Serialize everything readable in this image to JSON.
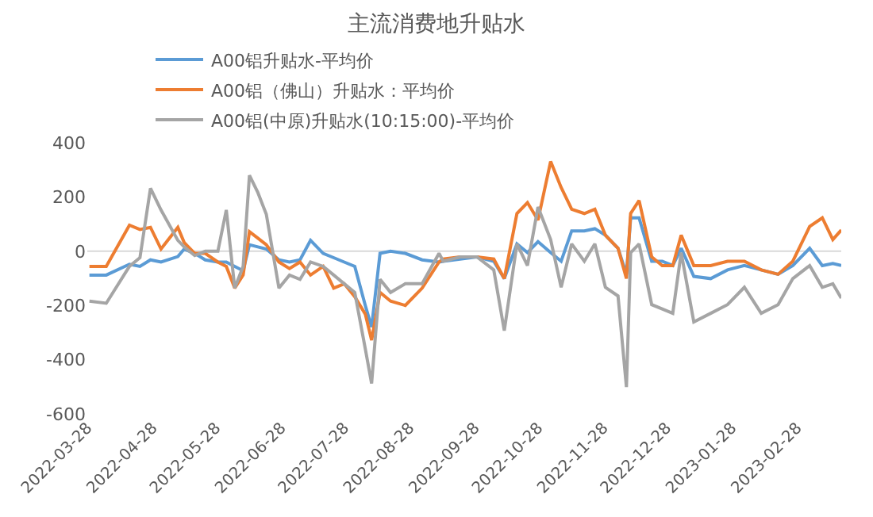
{
  "chart_data": {
    "type": "line",
    "title": "主流消费地升贴水",
    "x": [
      "2022-03-29",
      "2022-04-06",
      "2022-04-17",
      "2022-04-22",
      "2022-04-27",
      "2022-05-02",
      "2022-05-10",
      "2022-05-13",
      "2022-05-18",
      "2022-05-23",
      "2022-05-29",
      "2022-06-02",
      "2022-06-06",
      "2022-06-10",
      "2022-06-13",
      "2022-06-17",
      "2022-06-21",
      "2022-06-27",
      "2022-07-02",
      "2022-07-07",
      "2022-07-12",
      "2022-07-18",
      "2022-07-23",
      "2022-07-28",
      "2022-08-02",
      "2022-08-07",
      "2022-08-10",
      "2022-08-14",
      "2022-08-19",
      "2022-08-26",
      "2022-09-03",
      "2022-09-11",
      "2022-09-13",
      "2022-09-21",
      "2022-09-29",
      "2022-10-07",
      "2022-10-12",
      "2022-10-18",
      "2022-10-23",
      "2022-10-28",
      "2022-11-03",
      "2022-11-08",
      "2022-11-13",
      "2022-11-19",
      "2022-11-24",
      "2022-11-29",
      "2022-12-05",
      "2022-12-09",
      "2022-12-11",
      "2022-12-15",
      "2022-12-21",
      "2022-12-26",
      "2022-12-31",
      "2023-01-04",
      "2023-01-10",
      "2023-01-18",
      "2023-01-26",
      "2023-02-03",
      "2023-02-11",
      "2023-02-19",
      "2023-02-26",
      "2023-03-06",
      "2023-03-12",
      "2023-03-17",
      "2023-03-21"
    ],
    "series": [
      {
        "name": "A00铝升贴水-平均价",
        "color": "#5b9bd5",
        "values": [
          -88,
          -88,
          -48,
          -56,
          -32,
          -40,
          -20,
          8,
          -8,
          -32,
          -40,
          -40,
          -56,
          -72,
          24,
          16,
          8,
          -32,
          -40,
          -32,
          40,
          -8,
          -24,
          -40,
          -56,
          -200,
          -280,
          -8,
          0,
          -8,
          -32,
          -40,
          -37,
          -29,
          -21,
          -37,
          -101,
          27,
          -5,
          35,
          -5,
          -37,
          75,
          75,
          83,
          59,
          11,
          -85,
          123,
          123,
          -37,
          -37,
          -53,
          11,
          -93,
          -101,
          -69,
          -53,
          -69,
          -85,
          -53,
          11,
          -53,
          -45,
          -53
        ]
      },
      {
        "name": "A00铝（佛山）升贴水：平均价",
        "color": "#ed7d31",
        "values": [
          -56,
          -56,
          96,
          80,
          88,
          8,
          88,
          32,
          -8,
          -8,
          -40,
          -56,
          -136,
          -88,
          72,
          48,
          24,
          -40,
          -64,
          -40,
          -88,
          -56,
          -136,
          -120,
          -168,
          -232,
          -328,
          -152,
          -184,
          -200,
          -136,
          -40,
          -29,
          -21,
          -21,
          -29,
          -101,
          139,
          179,
          115,
          331,
          235,
          155,
          139,
          155,
          59,
          11,
          -101,
          139,
          187,
          -21,
          -53,
          -53,
          59,
          -53,
          -53,
          -37,
          -37,
          -69,
          -85,
          -37,
          91,
          123,
          43,
          78
        ]
      },
      {
        "name": "A00铝(中原)升贴水(10:15:00)-平均价",
        "color": "#a5a5a5",
        "values": [
          -184,
          -192,
          -56,
          -24,
          232,
          152,
          40,
          16,
          -16,
          0,
          0,
          152,
          -136,
          -56,
          280,
          216,
          136,
          -136,
          -88,
          -104,
          -40,
          -56,
          -88,
          -120,
          -152,
          -360,
          -488,
          -104,
          -152,
          -120,
          -120,
          -8,
          -37,
          -21,
          -21,
          -69,
          -293,
          27,
          -53,
          163,
          43,
          -133,
          27,
          -37,
          27,
          -133,
          -165,
          -501,
          -5,
          27,
          -197,
          -213,
          -229,
          -5,
          -261,
          -229,
          -197,
          -133,
          -229,
          -197,
          -101,
          -53,
          -133,
          -120,
          -173
        ]
      }
    ],
    "xlim": [
      "2022-03-28",
      "2023-03-21"
    ],
    "xticks": [
      {
        "value": "2022-03-28",
        "label": "2022-03-28"
      },
      {
        "value": "2022-04-28",
        "label": "2022-04-28"
      },
      {
        "value": "2022-05-28",
        "label": "2022-05-28"
      },
      {
        "value": "2022-06-28",
        "label": "2022-06-28"
      },
      {
        "value": "2022-07-28",
        "label": "2022-07-28"
      },
      {
        "value": "2022-08-28",
        "label": "2022-08-28"
      },
      {
        "value": "2022-09-28",
        "label": "2022-09-28"
      },
      {
        "value": "2022-10-28",
        "label": "2022-10-28"
      },
      {
        "value": "2022-11-28",
        "label": "2022-11-28"
      },
      {
        "value": "2022-12-28",
        "label": "2022-12-28"
      },
      {
        "value": "2023-01-28",
        "label": "2023-01-28"
      },
      {
        "value": "2023-02-28",
        "label": "2023-02-28"
      }
    ],
    "ylim": [
      -600,
      400
    ],
    "yticks": [
      -600,
      -400,
      -200,
      0,
      200,
      400
    ],
    "grid": false,
    "ref_lines": [
      {
        "axis": "y",
        "value": 0,
        "color": "#d9d9d9"
      }
    ],
    "legend": "top",
    "marker": "none",
    "line_style": "solid"
  }
}
